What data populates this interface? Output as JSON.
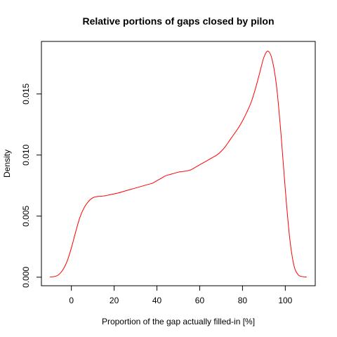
{
  "chart_data": {
    "type": "line",
    "title": "Relative portions of gaps closed by pilon",
    "xlabel": "Proportion of the gap actually filled-in [%]",
    "ylabel": "Density",
    "xlim": [
      -14,
      114
    ],
    "ylim": [
      -0.0007,
      0.0193
    ],
    "x_ticks": [
      0,
      20,
      40,
      60,
      80,
      100
    ],
    "x_tick_labels": [
      "0",
      "20",
      "40",
      "60",
      "80",
      "100"
    ],
    "y_ticks": [
      0.0,
      0.005,
      0.01,
      0.015
    ],
    "y_tick_labels": [
      "0.000",
      "0.005",
      "0.010",
      "0.015"
    ],
    "grid": false,
    "series": [
      {
        "color": "#ff0000",
        "x": [
          -10,
          -8,
          -6,
          -4,
          -2,
          0,
          2,
          4,
          6,
          8,
          10,
          12,
          14,
          16,
          18,
          20,
          22,
          24,
          26,
          28,
          30,
          32,
          34,
          36,
          38,
          40,
          42,
          44,
          46,
          48,
          50,
          52,
          54,
          56,
          58,
          60,
          62,
          64,
          66,
          68,
          70,
          72,
          74,
          76,
          78,
          80,
          82,
          84,
          86,
          88,
          90,
          92,
          94,
          96,
          98,
          100,
          102,
          104,
          106,
          108,
          110
        ],
        "y": [
          2e-05,
          5e-05,
          0.0002,
          0.0006,
          0.0013,
          0.0024,
          0.0037,
          0.0049,
          0.0057,
          0.0062,
          0.0065,
          0.0066,
          0.00663,
          0.00667,
          0.00675,
          0.00682,
          0.0069,
          0.007,
          0.0071,
          0.0072,
          0.0073,
          0.0074,
          0.0075,
          0.0076,
          0.0077,
          0.0079,
          0.0081,
          0.0083,
          0.0084,
          0.0085,
          0.0086,
          0.00865,
          0.0087,
          0.0088,
          0.009,
          0.0092,
          0.0094,
          0.0096,
          0.0098,
          0.01,
          0.0103,
          0.0107,
          0.0112,
          0.0117,
          0.0122,
          0.0128,
          0.0135,
          0.0143,
          0.0154,
          0.0167,
          0.018,
          0.0185,
          0.0177,
          0.0155,
          0.0117,
          0.0072,
          0.0033,
          0.001,
          0.0002,
          5e-05,
          1e-05
        ]
      }
    ]
  }
}
